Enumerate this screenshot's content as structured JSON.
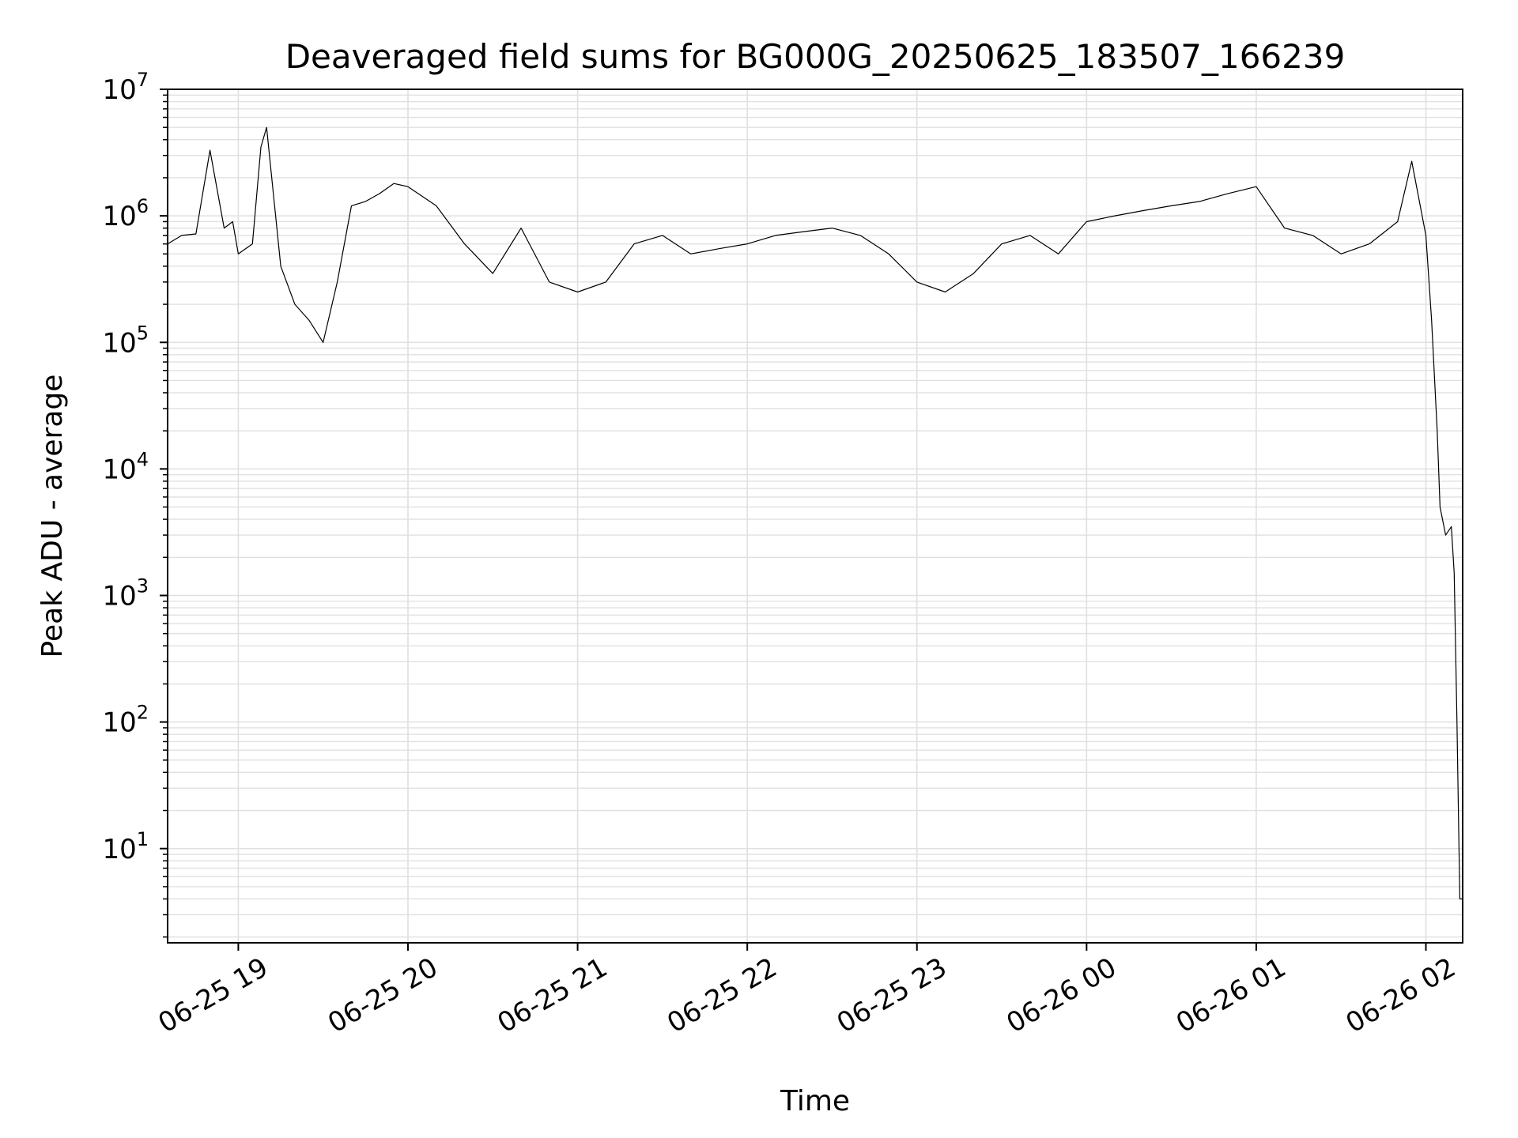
{
  "chart_data": {
    "type": "line",
    "title": "Deaveraged field sums for BG000G_20250625_183507_166239",
    "xlabel": "Time",
    "ylabel": "Peak ADU - average",
    "yscale": "log",
    "ylim": [
      1.8,
      10000000
    ],
    "xlim": [
      "2025-06-25 18:35",
      "2025-06-26 02:13"
    ],
    "x_ticks": [
      {
        "time": "2025-06-25 19:00",
        "label": "06-25 19"
      },
      {
        "time": "2025-06-25 20:00",
        "label": "06-25 20"
      },
      {
        "time": "2025-06-25 21:00",
        "label": "06-25 21"
      },
      {
        "time": "2025-06-25 22:00",
        "label": "06-25 22"
      },
      {
        "time": "2025-06-25 23:00",
        "label": "06-25 23"
      },
      {
        "time": "2025-06-26 00:00",
        "label": "06-26 00"
      },
      {
        "time": "2025-06-26 01:00",
        "label": "06-26 01"
      },
      {
        "time": "2025-06-26 02:00",
        "label": "06-26 02"
      }
    ],
    "y_ticks": [
      {
        "value": 10,
        "base": "10",
        "exp": "1"
      },
      {
        "value": 100,
        "base": "10",
        "exp": "2"
      },
      {
        "value": 1000,
        "base": "10",
        "exp": "3"
      },
      {
        "value": 10000,
        "base": "10",
        "exp": "4"
      },
      {
        "value": 100000,
        "base": "10",
        "exp": "5"
      },
      {
        "value": 1000000,
        "base": "10",
        "exp": "6"
      },
      {
        "value": 10000000,
        "base": "10",
        "exp": "7"
      }
    ],
    "grid": true,
    "grid_color": "#e0e0e0",
    "line_color": "#000000",
    "series": [
      {
        "x": [
          "2025-06-25 18:35",
          "2025-06-25 18:40",
          "2025-06-25 18:45",
          "2025-06-25 18:50",
          "2025-06-25 18:55",
          "2025-06-25 18:58",
          "2025-06-25 19:00",
          "2025-06-25 19:05",
          "2025-06-25 19:08",
          "2025-06-25 19:10",
          "2025-06-25 19:15",
          "2025-06-25 19:20",
          "2025-06-25 19:25",
          "2025-06-25 19:30",
          "2025-06-25 19:35",
          "2025-06-25 19:40",
          "2025-06-25 19:45",
          "2025-06-25 19:50",
          "2025-06-25 19:55",
          "2025-06-25 20:00",
          "2025-06-25 20:10",
          "2025-06-25 20:20",
          "2025-06-25 20:30",
          "2025-06-25 20:40",
          "2025-06-25 20:50",
          "2025-06-25 21:00",
          "2025-06-25 21:10",
          "2025-06-25 21:20",
          "2025-06-25 21:30",
          "2025-06-25 21:40",
          "2025-06-25 21:50",
          "2025-06-25 22:00",
          "2025-06-25 22:10",
          "2025-06-25 22:20",
          "2025-06-25 22:30",
          "2025-06-25 22:40",
          "2025-06-25 22:50",
          "2025-06-25 23:00",
          "2025-06-25 23:10",
          "2025-06-25 23:20",
          "2025-06-25 23:30",
          "2025-06-25 23:40",
          "2025-06-25 23:50",
          "2025-06-26 00:00",
          "2025-06-26 00:10",
          "2025-06-26 00:20",
          "2025-06-26 00:30",
          "2025-06-26 00:40",
          "2025-06-26 00:50",
          "2025-06-26 01:00",
          "2025-06-26 01:10",
          "2025-06-26 01:20",
          "2025-06-26 01:30",
          "2025-06-26 01:40",
          "2025-06-26 01:50",
          "2025-06-26 01:55",
          "2025-06-26 02:00",
          "2025-06-26 02:02",
          "2025-06-26 02:04",
          "2025-06-26 02:05",
          "2025-06-26 02:07",
          "2025-06-26 02:09",
          "2025-06-26 02:10",
          "2025-06-26 02:11",
          "2025-06-26 02:12",
          "2025-06-26 02:13"
        ],
        "y": [
          600000,
          700000,
          720000,
          3300000,
          800000,
          900000,
          500000,
          600000,
          3500000,
          5000000,
          400000,
          200000,
          150000,
          100000,
          300000,
          1200000,
          1300000,
          1500000,
          1800000,
          1700000,
          1200000,
          600000,
          350000,
          800000,
          300000,
          250000,
          300000,
          600000,
          700000,
          500000,
          550000,
          600000,
          700000,
          750000,
          800000,
          700000,
          500000,
          300000,
          250000,
          350000,
          600000,
          700000,
          500000,
          900000,
          1000000,
          1100000,
          1200000,
          1300000,
          1500000,
          1700000,
          800000,
          700000,
          500000,
          600000,
          900000,
          2700000,
          700000,
          150000,
          20000,
          5000,
          3000,
          3500,
          1500,
          100,
          4,
          4
        ]
      }
    ]
  }
}
